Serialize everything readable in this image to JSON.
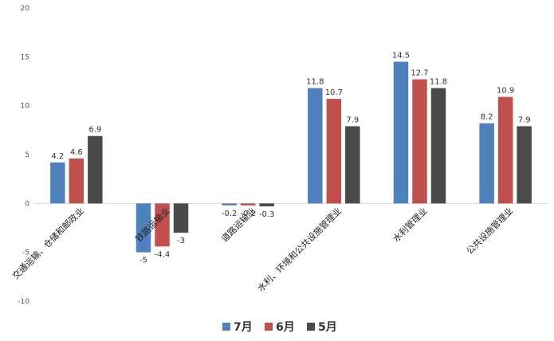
{
  "chart_data": {
    "type": "bar",
    "title": "",
    "xlabel": "",
    "ylabel": "",
    "ylim": [
      -10,
      20
    ],
    "yticks": [
      -10,
      -5,
      0,
      5,
      10,
      15,
      20
    ],
    "grid": false,
    "legend_position": "bottom-center",
    "categories": [
      "交通运输、仓储和邮政业",
      "铁路运输业",
      "道路运输业",
      "水利、环境和公共设施管理业",
      "水利管理业",
      "公共设施管理业"
    ],
    "series": [
      {
        "name": "7月",
        "color": "#4f81bd",
        "values": [
          4.2,
          -5,
          -0.2,
          11.8,
          14.5,
          8.2
        ]
      },
      {
        "name": "6月",
        "color": "#c0504d",
        "values": [
          4.6,
          -4.4,
          -0.2,
          10.7,
          12.7,
          10.9
        ]
      },
      {
        "name": "5月",
        "color": "#4a4a4a",
        "values": [
          6.9,
          -3,
          -0.3,
          7.9,
          11.8,
          7.9
        ]
      }
    ]
  }
}
